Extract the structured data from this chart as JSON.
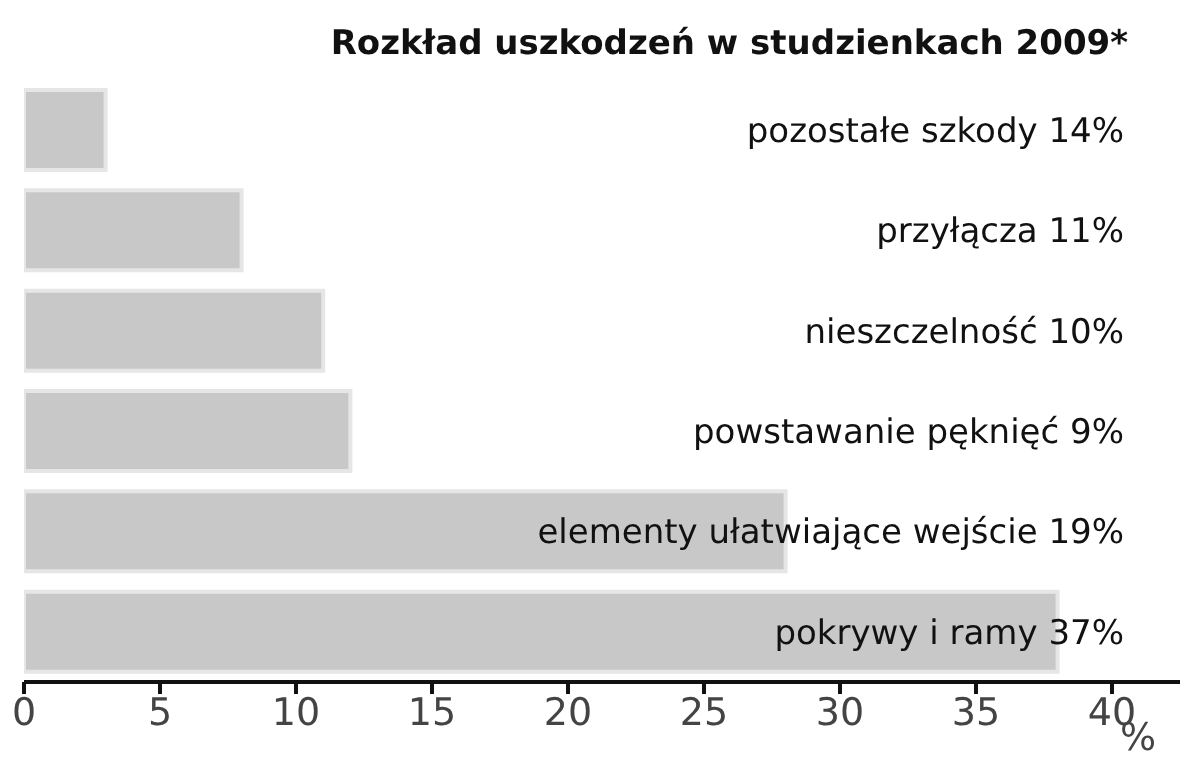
{
  "chart_data": {
    "type": "bar",
    "orientation": "horizontal",
    "title": "Rozkład uszkodzeń w studzienkach 2009*",
    "xlabel": "%",
    "categories": [
      "pozostałe szkody 14%",
      "przyłącza 11%",
      "nieszczelność 10%",
      "powstawanie pęknięć 9%",
      "elementy ułatwiające wejście 19%",
      "pokrywy i ramy 37%"
    ],
    "values": [
      3,
      8,
      11,
      12,
      28,
      38
    ],
    "color": "#c8c8c8",
    "xlim": [
      0,
      42.5
    ],
    "xticks": [
      0,
      5,
      10,
      15,
      20,
      25,
      30,
      35,
      40
    ],
    "grid": false
  }
}
